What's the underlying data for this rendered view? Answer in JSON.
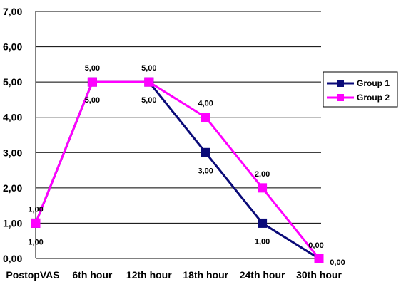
{
  "chart_data": {
    "type": "line",
    "title": "",
    "xlabel": "",
    "ylabel": "",
    "categories": [
      "PostopVAS",
      "6th hour",
      "12th hour",
      "18th hour",
      "24th hour",
      "30th hour"
    ],
    "y_ticks": [
      "0,00",
      "1,00",
      "2,00",
      "3,00",
      "4,00",
      "5,00",
      "6,00",
      "7,00"
    ],
    "ylim": [
      0,
      7
    ],
    "grid": "horizontal",
    "legend_position": "right",
    "series": [
      {
        "name": "Group 1",
        "color": "#0a0a78",
        "marker": "square",
        "values": [
          1,
          5,
          5,
          3,
          1,
          0
        ],
        "labels": [
          "1,00",
          "5,00",
          "5,00",
          "3,00",
          "1,00",
          "0,00"
        ]
      },
      {
        "name": "Group 2",
        "color": "#ff00ff",
        "marker": "square",
        "values": [
          1,
          5,
          5,
          4,
          2,
          0
        ],
        "labels": [
          "1,00",
          "5,00",
          "5,00",
          "4,00",
          "2,00",
          "0,00"
        ]
      }
    ]
  }
}
